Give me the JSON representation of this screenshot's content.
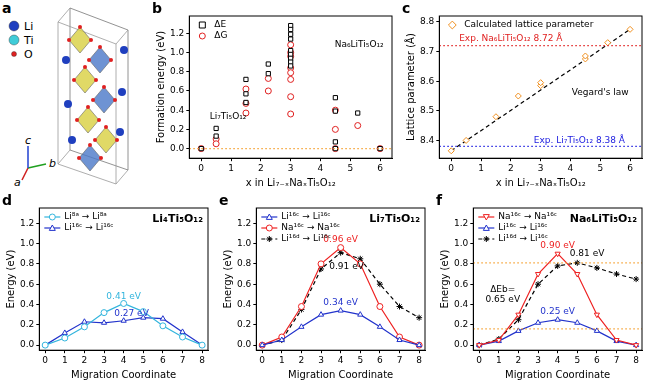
{
  "structure": {
    "panel_label": "a",
    "legend": [
      {
        "name": "Li",
        "color": "#1f3fbf"
      },
      {
        "name": "Ti",
        "color": "#40ccd8"
      },
      {
        "name": "O",
        "color": "#e02020"
      }
    ],
    "axes": [
      "a",
      "b",
      "c"
    ]
  },
  "chart_data": [
    {
      "type": "scatter",
      "panel_label": "b",
      "x_label": "x in Li₇₋ₓNaₓTi₅O₁₂",
      "y_label": "Formation energy (eV)",
      "xlim": [
        -0.4,
        6.4
      ],
      "xticks": [
        0,
        1,
        2,
        3,
        4,
        5,
        6
      ],
      "ylim": [
        -0.1,
        1.38
      ],
      "yticks": [
        {
          "value": 0,
          "label": "0.0"
        },
        0.2,
        0.4,
        0.6,
        0.8,
        {
          "value": 1,
          "label": "1.0"
        },
        1.2
      ],
      "legend": "upper left",
      "series": [
        {
          "name": "ΔE",
          "type": "scatter",
          "color": "#000000",
          "marker": "square",
          "x": [
            0,
            0.5,
            0.5,
            1.5,
            1.5,
            1.5,
            2.25,
            2.25,
            3,
            3,
            3,
            3,
            3,
            3,
            3,
            3,
            3,
            4.5,
            4.5,
            4.5,
            4.5,
            5.25,
            6
          ],
          "values": [
            0,
            0.21,
            0.13,
            0.72,
            0.57,
            0.48,
            0.88,
            0.78,
            1.28,
            1.24,
            1.19,
            1.14,
            1.02,
            0.98,
            0.94,
            0.9,
            0.86,
            0.53,
            0.39,
            0.07,
            0,
            0.37,
            0
          ]
        },
        {
          "name": "ΔG",
          "type": "scatter",
          "color": "#e02020",
          "marker": "circle",
          "x": [
            0,
            0.5,
            0.5,
            1.5,
            1.5,
            1.5,
            2.25,
            2.25,
            3,
            3,
            3,
            3,
            3,
            3,
            3,
            3,
            4.5,
            4.5,
            4.5,
            5.25,
            6
          ],
          "values": [
            0,
            0.1,
            0.05,
            0.62,
            0.47,
            0.37,
            0.73,
            0.6,
            1.08,
            1.0,
            0.96,
            0.84,
            0.79,
            0.72,
            0.54,
            0.36,
            0.4,
            0.2,
            0,
            0.24,
            0
          ]
        }
      ],
      "hlines": [
        {
          "value": 0,
          "color": "#f5a030",
          "line_style": "dotted"
        }
      ],
      "annotations": [
        {
          "text": "Li₇Ti₅O₁₂",
          "x": 0.9,
          "y": 0.33,
          "color": "#000000"
        },
        {
          "text": "Na₆LiTi₅O₁₂",
          "x": 5.3,
          "y": 1.08,
          "color": "#000000"
        }
      ]
    },
    {
      "type": "scatter",
      "panel_label": "c",
      "x_label": "x in Li₇₋ₓNaₓTi₅O₁₂",
      "y_label": "Lattice parameter (Å)",
      "xlim": [
        -0.4,
        6.4
      ],
      "xticks": [
        0,
        1,
        2,
        3,
        4,
        5,
        6
      ],
      "ylim": [
        8.34,
        8.82
      ],
      "yticks": [
        8.4,
        8.5,
        8.6,
        8.7,
        8.8
      ],
      "legend": "upper left",
      "series": [
        {
          "name": "Calculated lattice parameter",
          "type": "scatter",
          "color": "#f09020",
          "marker": "diamond",
          "x": [
            0,
            0.5,
            1.5,
            2.25,
            3,
            3,
            4.5,
            4.5,
            5.25,
            6
          ],
          "values": [
            8.365,
            8.4,
            8.48,
            8.55,
            8.585,
            8.595,
            8.675,
            8.685,
            8.73,
            8.775
          ]
        },
        {
          "type": "line",
          "color": "#000000",
          "marker": "none",
          "line_style": "dashed",
          "x": [
            0,
            6
          ],
          "values": [
            8.365,
            8.775
          ]
        }
      ],
      "hlines": [
        {
          "value": 8.72,
          "color": "#e02020",
          "line_style": "dotted"
        },
        {
          "value": 8.38,
          "color": "#2020e0",
          "line_style": "dotted"
        }
      ],
      "annotations": [
        {
          "text": "Exp. Na₆LiTi₅O₁₂ 8.72 Å",
          "x": 2.0,
          "y": 8.742,
          "color": "#e02020"
        },
        {
          "text": "Exp. Li₇Ti₅O₁₂ 8.38 Å",
          "x": 4.3,
          "y": 8.4,
          "color": "#2020e0"
        },
        {
          "text": "Vegard's law",
          "x": 5.0,
          "y": 8.56,
          "color": "#000000"
        }
      ]
    },
    {
      "type": "line",
      "panel_label": "d",
      "title": "Li₄Ti₅O₁₂",
      "x_label": "Migration Coordinate",
      "y_label": "Energy (eV)",
      "xlim": [
        -0.3,
        8.3
      ],
      "xticks": [
        0,
        1,
        2,
        3,
        4,
        5,
        6,
        7,
        8
      ],
      "ylim": [
        -0.05,
        1.35
      ],
      "yticks": [
        {
          "value": 0,
          "label": "0.0"
        },
        0.2,
        0.4,
        0.6,
        0.8,
        {
          "value": 1,
          "label": "1.0"
        },
        1.2
      ],
      "legend": "upper left",
      "series": [
        {
          "name": "Li⁸ᵃ → Li⁸ᵃ",
          "type": "line",
          "color": "#33b5dd",
          "marker": "circle",
          "line_style": "solid",
          "x": [
            0,
            1,
            2,
            3,
            4,
            5,
            6,
            7,
            8
          ],
          "values": [
            0,
            0.07,
            0.18,
            0.32,
            0.41,
            0.33,
            0.19,
            0.08,
            0
          ]
        },
        {
          "name": "Li¹⁶ᶜ → Li¹⁶ᶜ",
          "type": "line",
          "color": "#2233cc",
          "marker": "triangle",
          "line_style": "solid",
          "x": [
            0,
            1,
            2,
            3,
            4,
            5,
            6,
            7,
            8
          ],
          "values": [
            0,
            0.12,
            0.23,
            0.22,
            0.24,
            0.27,
            0.26,
            0.13,
            0
          ]
        }
      ],
      "annotations": [
        {
          "text": "0.41 eV",
          "x": 4,
          "y": 0.48,
          "color": "#33b5dd"
        },
        {
          "text": "0.27 eV",
          "x": 4.4,
          "y": 0.31,
          "color": "#2233cc"
        }
      ]
    },
    {
      "type": "line",
      "panel_label": "e",
      "title": "Li₇Ti₅O₁₂",
      "x_label": "Migration Coordinate",
      "y_label": "Energy (eV)",
      "xlim": [
        -0.3,
        8.3
      ],
      "xticks": [
        0,
        1,
        2,
        3,
        4,
        5,
        6,
        7,
        8
      ],
      "ylim": [
        -0.05,
        1.35
      ],
      "yticks": [
        {
          "value": 0,
          "label": "0.0"
        },
        0.2,
        0.4,
        0.6,
        0.8,
        {
          "value": 1,
          "label": "1.0"
        },
        1.2
      ],
      "legend": "upper left",
      "series": [
        {
          "name": "Li¹⁶ᶜ → Li¹⁶ᶜ",
          "type": "line",
          "color": "#2233cc",
          "marker": "triangle",
          "line_style": "solid",
          "x": [
            0,
            1,
            2,
            3,
            4,
            5,
            6,
            7,
            8
          ],
          "values": [
            0,
            0.05,
            0.18,
            0.3,
            0.34,
            0.3,
            0.18,
            0.05,
            0
          ]
        },
        {
          "name": "Na¹⁶ᶜ → Na¹⁶ᶜ",
          "type": "line",
          "color": "#ee2222",
          "marker": "circle",
          "line_style": "solid",
          "x": [
            0,
            1,
            2,
            3,
            4,
            5,
            6,
            7,
            8
          ],
          "values": [
            0,
            0.08,
            0.38,
            0.8,
            0.96,
            0.8,
            0.38,
            0.08,
            0
          ]
        },
        {
          "name": "Li¹⁶ᵈ → Li¹⁶ᶜ",
          "type": "line",
          "color": "#000000",
          "marker": "star",
          "line_style": "dashed",
          "x": [
            0,
            1,
            2,
            3,
            4,
            5,
            6,
            7,
            8
          ],
          "values": [
            0,
            0.05,
            0.35,
            0.75,
            0.91,
            0.85,
            0.6,
            0.38,
            0.27
          ]
        }
      ],
      "annotations": [
        {
          "text": "0.96 eV",
          "x": 4,
          "y": 1.04,
          "color": "#ee2222"
        },
        {
          "text": "0.91 eV",
          "x": 4.3,
          "y": 0.77,
          "color": "#000000"
        },
        {
          "text": "0.34 eV",
          "x": 4,
          "y": 0.42,
          "color": "#2233cc"
        }
      ]
    },
    {
      "type": "line",
      "panel_label": "f",
      "title": "Na₆LiTi₅O₁₂",
      "x_label": "Migration Coordinate",
      "y_label": "Energy (eV)",
      "xlim": [
        -0.3,
        8.3
      ],
      "xticks": [
        0,
        1,
        2,
        3,
        4,
        5,
        6,
        7,
        8
      ],
      "ylim": [
        -0.05,
        1.35
      ],
      "yticks": [
        {
          "value": 0,
          "label": "0.0"
        },
        0.2,
        0.4,
        0.6,
        0.8,
        {
          "value": 1,
          "label": "1.0"
        },
        1.2
      ],
      "legend": "upper left",
      "series": [
        {
          "name": "Na¹⁶ᶜ → Na¹⁶ᶜ",
          "type": "line",
          "color": "#ee2222",
          "marker": "triangle_down",
          "line_style": "solid",
          "x": [
            0,
            1,
            2,
            3,
            4,
            5,
            6,
            7,
            8
          ],
          "values": [
            0,
            0.05,
            0.3,
            0.7,
            0.9,
            0.7,
            0.3,
            0.05,
            0
          ]
        },
        {
          "name": "Li¹⁶ᶜ → Li¹⁶ᶜ",
          "type": "line",
          "color": "#2233cc",
          "marker": "triangle",
          "line_style": "solid",
          "x": [
            0,
            1,
            2,
            3,
            4,
            5,
            6,
            7,
            8
          ],
          "values": [
            0,
            0.04,
            0.14,
            0.22,
            0.25,
            0.22,
            0.14,
            0.04,
            0
          ]
        },
        {
          "name": "Li¹⁶ᵈ → Li¹⁶ᶜ",
          "type": "line",
          "color": "#000000",
          "marker": "star",
          "line_style": "dashed",
          "x": [
            0,
            1,
            2,
            3,
            4,
            5,
            6,
            7,
            8
          ],
          "values": [
            0,
            0.06,
            0.25,
            0.6,
            0.78,
            0.81,
            0.76,
            0.7,
            0.65
          ]
        }
      ],
      "hlines": [
        {
          "value": 0.81,
          "color": "#f5a030",
          "line_style": "dotted"
        },
        {
          "value": 0.16,
          "color": "#f5a030",
          "line_style": "dotted"
        }
      ],
      "annotations": [
        {
          "text": "0.90 eV",
          "x": 4,
          "y": 0.98,
          "color": "#ee2222"
        },
        {
          "text": "0.81 eV",
          "x": 5.5,
          "y": 0.9,
          "color": "#000000"
        },
        {
          "text": "0.25 eV",
          "x": 4,
          "y": 0.33,
          "color": "#2233cc"
        },
        {
          "text": "ΔEb=\n0.65 eV",
          "x": 1.2,
          "y": 0.5,
          "color": "#000000"
        }
      ]
    }
  ]
}
